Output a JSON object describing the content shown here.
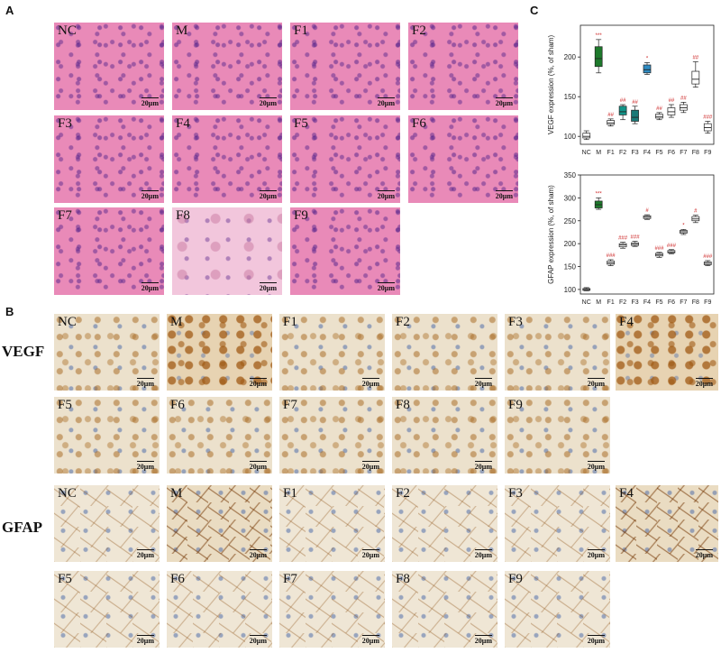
{
  "labels": {
    "a": "A",
    "b": "B",
    "c": "C",
    "vegf": "VEGF",
    "gfap": "GFAP"
  },
  "scale_bar": "20μm",
  "panel_a": [
    "NC",
    "M",
    "F1",
    "F2",
    "F3",
    "F4",
    "F5",
    "F6",
    "F7",
    "F8",
    "F9"
  ],
  "panel_b_vegf": [
    "NC",
    "M",
    "F1",
    "F2",
    "F3",
    "F4",
    "F5",
    "F6",
    "F7",
    "F8",
    "F9"
  ],
  "panel_b_gfap": [
    "NC",
    "M",
    "F1",
    "F2",
    "F3",
    "F4",
    "F5",
    "F6",
    "F7",
    "F8",
    "F9"
  ],
  "colors": {
    "M": "#1e7a2c",
    "F2": "#129488",
    "F3": "#1a7a78",
    "F4": "#2f8bc2",
    "white": "#ffffff",
    "sig": "#cc2222"
  },
  "chart_data": [
    {
      "type": "box",
      "ylabel": "VEGF expression (%, of sham)",
      "ylim": [
        90,
        240
      ],
      "yticks": [
        100,
        150,
        200
      ],
      "categories": [
        "NC",
        "M",
        "F1",
        "F2",
        "F3",
        "F4",
        "F5",
        "F6",
        "F7",
        "F8",
        "F9"
      ],
      "box_colors": [
        "#ffffff",
        "#1e7a2c",
        "#ffffff",
        "#129488",
        "#1a7a78",
        "#2f8bc2",
        "#ffffff",
        "#ffffff",
        "#ffffff",
        "#ffffff",
        "#ffffff"
      ],
      "boxes": [
        {
          "min": 96,
          "q1": 98,
          "median": 100,
          "q3": 104,
          "max": 107
        },
        {
          "min": 180,
          "q1": 188,
          "median": 198,
          "q3": 213,
          "max": 222
        },
        {
          "min": 113,
          "q1": 115,
          "median": 117,
          "q3": 120,
          "max": 122
        },
        {
          "min": 121,
          "q1": 127,
          "median": 131,
          "q3": 138,
          "max": 140
        },
        {
          "min": 116,
          "q1": 119,
          "median": 124,
          "q3": 133,
          "max": 138
        },
        {
          "min": 178,
          "q1": 180,
          "median": 184,
          "q3": 190,
          "max": 193
        },
        {
          "min": 121,
          "q1": 123,
          "median": 125,
          "q3": 128,
          "max": 130
        },
        {
          "min": 124,
          "q1": 127,
          "median": 131,
          "q3": 136,
          "max": 140
        },
        {
          "min": 130,
          "q1": 133,
          "median": 136,
          "q3": 140,
          "max": 143
        },
        {
          "min": 162,
          "q1": 166,
          "median": 172,
          "q3": 182,
          "max": 194
        },
        {
          "min": 104,
          "q1": 107,
          "median": 111,
          "q3": 116,
          "max": 119
        }
      ],
      "annotations": [
        "",
        "***",
        "##",
        "##",
        "##",
        "*",
        "##",
        "##",
        "##",
        "##",
        "###"
      ]
    },
    {
      "type": "box",
      "ylabel": "GFAP expression (%, of sham)",
      "ylim": [
        90,
        350
      ],
      "yticks": [
        100,
        150,
        200,
        250,
        300,
        350
      ],
      "categories": [
        "NC",
        "M",
        "F1",
        "F2",
        "F3",
        "F4",
        "F5",
        "F6",
        "F7",
        "F8",
        "F9"
      ],
      "box_colors": [
        "#ffffff",
        "#1e7a2c",
        "#ffffff",
        "#ffffff",
        "#ffffff",
        "#ffffff",
        "#ffffff",
        "#ffffff",
        "#ffffff",
        "#ffffff",
        "#ffffff"
      ],
      "boxes": [
        {
          "min": 97,
          "q1": 98,
          "median": 100,
          "q3": 102,
          "max": 104
        },
        {
          "min": 275,
          "q1": 278,
          "median": 285,
          "q3": 293,
          "max": 300
        },
        {
          "min": 152,
          "q1": 155,
          "median": 158,
          "q3": 162,
          "max": 165
        },
        {
          "min": 190,
          "q1": 193,
          "median": 197,
          "q3": 200,
          "max": 203
        },
        {
          "min": 194,
          "q1": 196,
          "median": 199,
          "q3": 202,
          "max": 205
        },
        {
          "min": 253,
          "q1": 255,
          "median": 258,
          "q3": 261,
          "max": 263
        },
        {
          "min": 170,
          "q1": 173,
          "median": 176,
          "q3": 179,
          "max": 181
        },
        {
          "min": 178,
          "q1": 180,
          "median": 182,
          "q3": 185,
          "max": 187
        },
        {
          "min": 220,
          "q1": 223,
          "median": 226,
          "q3": 229,
          "max": 231
        },
        {
          "min": 246,
          "q1": 250,
          "median": 254,
          "q3": 259,
          "max": 262
        },
        {
          "min": 152,
          "q1": 154,
          "median": 157,
          "q3": 160,
          "max": 163
        }
      ],
      "annotations": [
        "",
        "***",
        "###",
        "###",
        "###",
        "#",
        "###",
        "###",
        "*",
        "#",
        "###"
      ]
    }
  ]
}
